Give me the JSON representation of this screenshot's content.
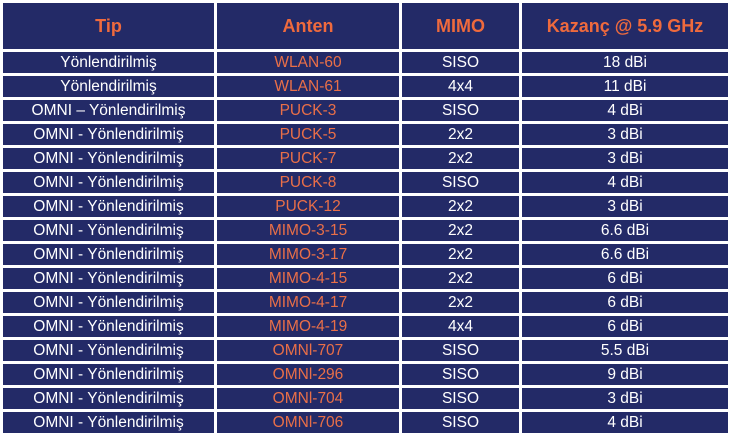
{
  "colors": {
    "cell_background": "#232a67",
    "header_text": "#ef6a3d",
    "anten_text": "#e96f48",
    "body_text": "#ffffff",
    "border": "#ffffff"
  },
  "table": {
    "columns": [
      {
        "key": "tip",
        "label": "Tip"
      },
      {
        "key": "anten",
        "label": "Anten"
      },
      {
        "key": "mimo",
        "label": "MIMO"
      },
      {
        "key": "kazanc",
        "label": "Kazanç @ 5.9 GHz"
      }
    ],
    "rows": [
      {
        "tip": "Yönlendirilmiş",
        "anten": "WLAN-60",
        "mimo": "SISO",
        "kazanc": "18 dBi"
      },
      {
        "tip": "Yönlendirilmiş",
        "anten": "WLAN-61",
        "mimo": "4x4",
        "kazanc": "11 dBi"
      },
      {
        "tip": "OMNI – Yönlendirilmiş",
        "anten": "PUCK-3",
        "mimo": "SISO",
        "kazanc": "4 dBi"
      },
      {
        "tip": "OMNI - Yönlendirilmiş",
        "anten": "PUCK-5",
        "mimo": "2x2",
        "kazanc": "3 dBi"
      },
      {
        "tip": "OMNI - Yönlendirilmiş",
        "anten": "PUCK-7",
        "mimo": "2x2",
        "kazanc": "3 dBi"
      },
      {
        "tip": "OMNI - Yönlendirilmiş",
        "anten": "PUCK-8",
        "mimo": "SISO",
        "kazanc": "4 dBi"
      },
      {
        "tip": "OMNI - Yönlendirilmiş",
        "anten": "PUCK-12",
        "mimo": "2x2",
        "kazanc": "3 dBi"
      },
      {
        "tip": "OMNI - Yönlendirilmiş",
        "anten": "MIMO-3-15",
        "mimo": "2x2",
        "kazanc": "6.6 dBi"
      },
      {
        "tip": "OMNI - Yönlendirilmiş",
        "anten": "MIMO-3-17",
        "mimo": "2x2",
        "kazanc": "6.6 dBi"
      },
      {
        "tip": "OMNI - Yönlendirilmiş",
        "anten": "MIMO-4-15",
        "mimo": "2x2",
        "kazanc": "6 dBi"
      },
      {
        "tip": "OMNI - Yönlendirilmiş",
        "anten": "MIMO-4-17",
        "mimo": "2x2",
        "kazanc": "6 dBi"
      },
      {
        "tip": "OMNI - Yönlendirilmiş",
        "anten": "MIMO-4-19",
        "mimo": "4x4",
        "kazanc": "6 dBi"
      },
      {
        "tip": "OMNI - Yönlendirilmiş",
        "anten": "OMNl-707",
        "mimo": "SISO",
        "kazanc": "5.5 dBi"
      },
      {
        "tip": "OMNI - Yönlendirilmiş",
        "anten": "OMNl-296",
        "mimo": "SISO",
        "kazanc": "9 dBi"
      },
      {
        "tip": "OMNI - Yönlendirilmiş",
        "anten": "OMNl-704",
        "mimo": "SISO",
        "kazanc": "3 dBi"
      },
      {
        "tip": "OMNI - Yönlendirilmiş",
        "anten": "OMNl-706",
        "mimo": "SISO",
        "kazanc": "4 dBi"
      }
    ]
  }
}
